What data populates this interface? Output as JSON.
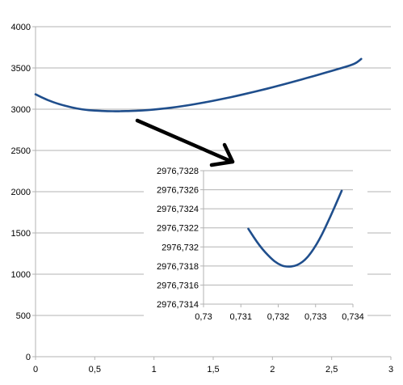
{
  "chart_data": [
    {
      "type": "line",
      "title": "",
      "xlabel": "",
      "ylabel": "",
      "xlim": [
        0,
        3
      ],
      "ylim": [
        0,
        4000
      ],
      "x_ticks": [
        0,
        0.5,
        1,
        1.5,
        2,
        2.5,
        3
      ],
      "x_tick_labels": [
        "0",
        "0,5",
        "1",
        "1,5",
        "2",
        "2,5",
        "3"
      ],
      "y_ticks": [
        0,
        500,
        1000,
        1500,
        2000,
        2500,
        3000,
        3500,
        4000
      ],
      "y_tick_labels": [
        "0",
        "500",
        "1000",
        "1500",
        "2000",
        "2500",
        "3000",
        "3500",
        "4000"
      ],
      "grid": "horizontal",
      "legend": "none",
      "line_color": "#1f4e8c",
      "series": [
        {
          "x": [
            0,
            0.1,
            0.2,
            0.3,
            0.4,
            0.5,
            0.6,
            0.7,
            0.732,
            0.8,
            0.9,
            1.0,
            1.1,
            1.2,
            1.3,
            1.4,
            1.5,
            1.6,
            1.7,
            1.8,
            1.9,
            2.0,
            2.1,
            2.2,
            2.3,
            2.4,
            2.5,
            2.6,
            2.7,
            2.75
          ],
          "y": [
            3180,
            3110,
            3060,
            3022,
            2995,
            2982,
            2976,
            2974,
            2977,
            2978,
            2984,
            2995,
            3010,
            3028,
            3050,
            3075,
            3102,
            3131,
            3162,
            3195,
            3229,
            3265,
            3303,
            3342,
            3382,
            3422,
            3464,
            3506,
            3550,
            3610
          ]
        }
      ]
    },
    {
      "type": "line",
      "title": "",
      "xlabel": "",
      "ylabel": "",
      "xlim": [
        0.73,
        0.734
      ],
      "ylim": [
        2976.7314,
        2976.7328
      ],
      "x_ticks": [
        0.73,
        0.731,
        0.732,
        0.733,
        0.734
      ],
      "x_tick_labels": [
        "0,73",
        "0,731",
        "0,732",
        "0,733",
        "0,734"
      ],
      "y_ticks": [
        2976.7314,
        2976.7316,
        2976.7318,
        2976.732,
        2976.7322,
        2976.7324,
        2976.7326,
        2976.7328
      ],
      "y_tick_labels": [
        "2976,7314",
        "2976,7316",
        "2976,7318",
        "2976,732",
        "2976,7322",
        "2976,7324",
        "2976,7326",
        "2976,7328"
      ],
      "grid": "horizontal",
      "legend": "none",
      "line_color": "#1f4e8c",
      "series": [
        {
          "x": [
            0.7312,
            0.7315,
            0.7318,
            0.732,
            0.7322,
            0.7325,
            0.7328,
            0.7331,
            0.7334,
            0.7337
          ],
          "y": [
            2976.73219,
            2976.73201,
            2976.73188,
            2976.73182,
            2976.73179,
            2976.7318,
            2976.73189,
            2976.73207,
            2976.73232,
            2976.73259
          ]
        }
      ]
    }
  ],
  "annotation": {
    "type": "arrow",
    "meaning": "zoom-into-minimum",
    "color": "#000000"
  }
}
